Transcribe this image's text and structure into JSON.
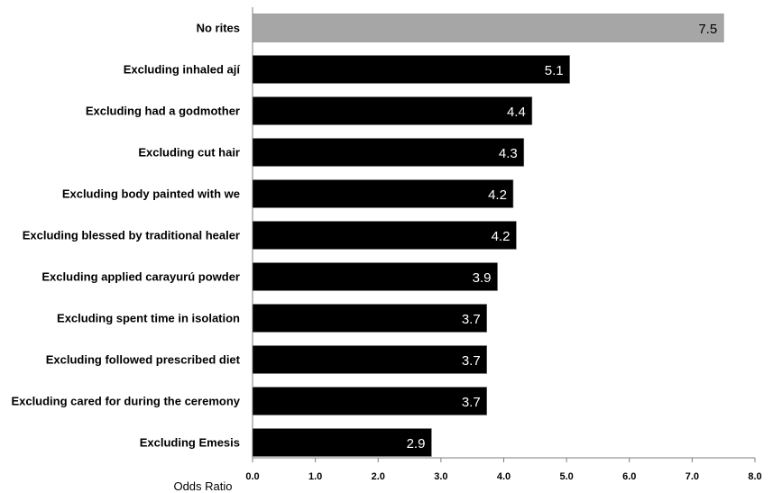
{
  "chart_data": {
    "type": "bar",
    "orientation": "horizontal",
    "categories": [
      "No rites",
      "Excluding inhaled ají",
      "Excluding had a godmother",
      "Excluding cut hair",
      "Excluding body painted with we",
      "Excluding blessed by traditional healer",
      "Excluding applied carayurú powder",
      "Excluding spent time in isolation",
      "Excluding followed prescribed diet",
      "Excluding cared for during the ceremony",
      "Excluding Emesis"
    ],
    "values": [
      7.5,
      5.05,
      4.45,
      4.32,
      4.15,
      4.2,
      3.9,
      3.73,
      3.73,
      3.73,
      2.85
    ],
    "data_labels": [
      "7.5",
      "5.1",
      "4.4",
      "4.3",
      "4.2",
      "4.2",
      "3.9",
      "3.7",
      "3.7",
      "3.7",
      "2.9"
    ],
    "bar_colors": [
      "#a6a6a6",
      "#000000",
      "#000000",
      "#000000",
      "#000000",
      "#000000",
      "#000000",
      "#000000",
      "#000000",
      "#000000",
      "#000000"
    ],
    "xlabel": "Odds Ratio",
    "ylabel": "",
    "xlim": [
      0,
      8
    ],
    "xticks": [
      "0.0",
      "1.0",
      "2.0",
      "3.0",
      "4.0",
      "5.0",
      "6.0",
      "7.0",
      "8.0"
    ],
    "grid": false,
    "legend": "none"
  }
}
